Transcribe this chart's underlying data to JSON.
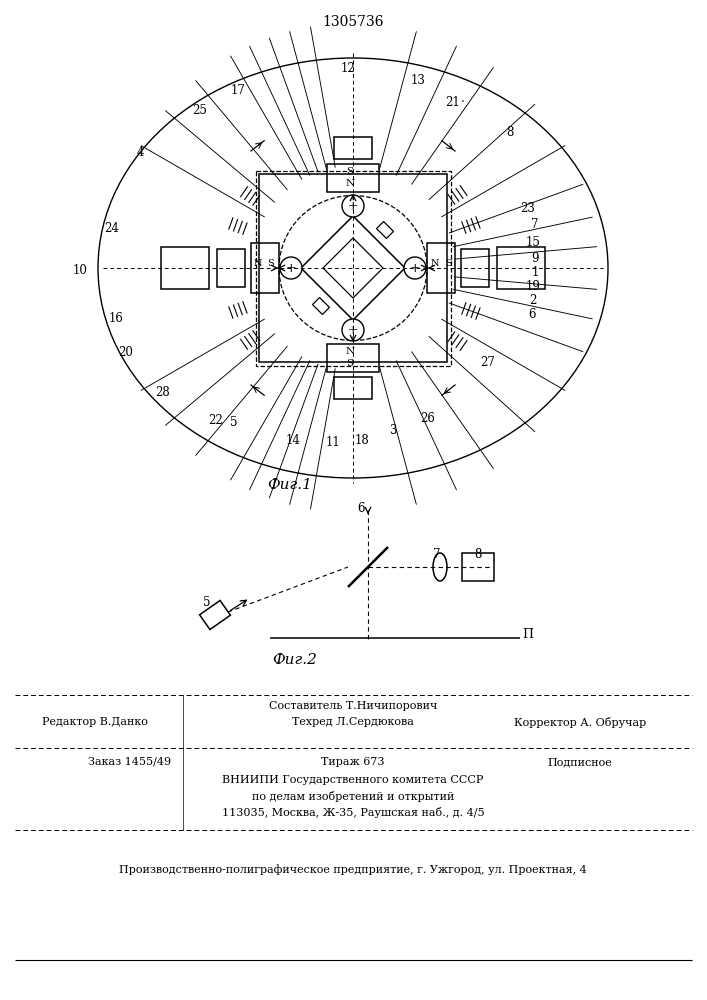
{
  "patent_number": "1305736",
  "fig1_caption": "Фиг.1",
  "fig2_caption": "Фиг.2",
  "background_color": "#ffffff",
  "line_color": "#000000",
  "footer_bottom": "Производственно-полиграфическое предприятие, г. Ужгород, ул. Проектная, 4"
}
